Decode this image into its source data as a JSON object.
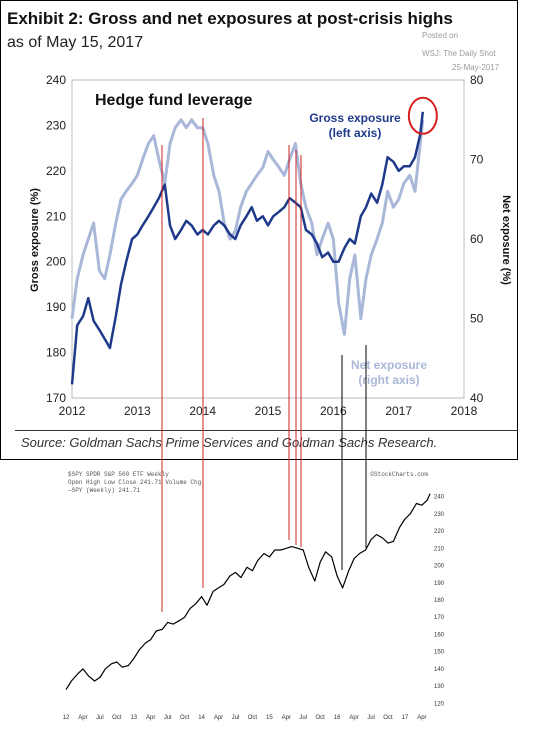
{
  "header": {
    "title": "Exhibit 2: Gross and net exposures at post-crisis highs",
    "subtitle": "as of May 15, 2017",
    "watermark_posted": "Posted on",
    "watermark_source": "WSJ: The Daily Shot",
    "watermark_date": "25-May-2017"
  },
  "source": "Source: Goldman Sachs Prime Services and Goldman Sachs Research.",
  "colors": {
    "gross": "#1f3a8a",
    "net": "#a9b7d8",
    "marker_lines": "#cc2222",
    "circle": "#d42020"
  },
  "chart_data": [
    {
      "type": "line",
      "title": "Hedge fund leverage",
      "xlabel": "",
      "ylabel": "Gross exposure (%)",
      "y2label": "Net exposure (%)",
      "xlim": [
        2012,
        2018
      ],
      "ylim": [
        170,
        240
      ],
      "y2lim": [
        40,
        80
      ],
      "x_ticks": [
        "2012",
        "2013",
        "2014",
        "2015",
        "2016",
        "2017",
        "2018"
      ],
      "y_ticks": [
        "170",
        "180",
        "190",
        "200",
        "210",
        "220",
        "230",
        "240"
      ],
      "y2_ticks": [
        "40",
        "50",
        "60",
        "70",
        "80"
      ],
      "grid": false,
      "series": [
        {
          "name": "Gross exposure (left axis)",
          "axis": "left",
          "x": [
            2012.0,
            2012.08,
            2012.17,
            2012.25,
            2012.33,
            2012.42,
            2012.5,
            2012.58,
            2012.67,
            2012.75,
            2012.83,
            2012.92,
            2013.0,
            2013.08,
            2013.17,
            2013.25,
            2013.33,
            2013.42,
            2013.5,
            2013.58,
            2013.67,
            2013.75,
            2013.83,
            2013.92,
            2014.0,
            2014.08,
            2014.17,
            2014.25,
            2014.33,
            2014.42,
            2014.5,
            2014.58,
            2014.67,
            2014.75,
            2014.83,
            2014.92,
            2015.0,
            2015.08,
            2015.17,
            2015.25,
            2015.33,
            2015.42,
            2015.5,
            2015.58,
            2015.67,
            2015.75,
            2015.83,
            2015.92,
            2016.0,
            2016.08,
            2016.17,
            2016.25,
            2016.33,
            2016.42,
            2016.5,
            2016.58,
            2016.67,
            2016.75,
            2016.83,
            2016.92,
            2017.0,
            2017.08,
            2017.17,
            2017.25,
            2017.33,
            2017.37
          ],
          "values": [
            173,
            186,
            188,
            192,
            187,
            185,
            183,
            181,
            188,
            195,
            200,
            205,
            206,
            208,
            210,
            212,
            214,
            217,
            208,
            205,
            207,
            209,
            208,
            206,
            207,
            206,
            208,
            209,
            208,
            206,
            205,
            208,
            210,
            212,
            209,
            210,
            208,
            210,
            211,
            212,
            214,
            213,
            212,
            207,
            206,
            204,
            201,
            202,
            200,
            200,
            203,
            205,
            204,
            210,
            212,
            215,
            213,
            217,
            223,
            222,
            220,
            221,
            221,
            223,
            228,
            233
          ]
        },
        {
          "name": "Net exposure (right axis)",
          "axis": "right",
          "x": [
            2012.0,
            2012.08,
            2012.17,
            2012.25,
            2012.33,
            2012.42,
            2012.5,
            2012.58,
            2012.67,
            2012.75,
            2012.83,
            2012.92,
            2013.0,
            2013.08,
            2013.17,
            2013.25,
            2013.33,
            2013.42,
            2013.5,
            2013.58,
            2013.67,
            2013.75,
            2013.83,
            2013.92,
            2014.0,
            2014.08,
            2014.17,
            2014.25,
            2014.33,
            2014.42,
            2014.5,
            2014.58,
            2014.67,
            2014.75,
            2014.83,
            2014.92,
            2015.0,
            2015.08,
            2015.17,
            2015.25,
            2015.33,
            2015.42,
            2015.5,
            2015.58,
            2015.67,
            2015.75,
            2015.83,
            2015.92,
            2016.0,
            2016.08,
            2016.17,
            2016.25,
            2016.33,
            2016.42,
            2016.5,
            2016.58,
            2016.67,
            2016.75,
            2016.83,
            2016.92,
            2017.0,
            2017.08,
            2017.17,
            2017.25,
            2017.33,
            2017.37
          ],
          "values": [
            50,
            55,
            58,
            60,
            62,
            56,
            55,
            58,
            62,
            65,
            66,
            67,
            68,
            70,
            72,
            73,
            70,
            67,
            72,
            74,
            75,
            74,
            75,
            74,
            74,
            72,
            68,
            66,
            62,
            60,
            61,
            64,
            66,
            67,
            68,
            69,
            71,
            70,
            69,
            68,
            70,
            72,
            67,
            64,
            62,
            58,
            60,
            62,
            60,
            52,
            48,
            55,
            58,
            50,
            55,
            58,
            60,
            62,
            66,
            64,
            65,
            67,
            68,
            66,
            72,
            75
          ]
        }
      ],
      "annotations": [
        {
          "text": "Gross exposure",
          "series": "gross"
        },
        {
          "text": "(left axis)",
          "series": "gross"
        },
        {
          "text": "Net exposure",
          "series": "net"
        },
        {
          "text": "(right axis)",
          "series": "net"
        }
      ]
    },
    {
      "type": "line",
      "title": "",
      "header_line1": "$SPY SPDR S&P 500 ETF  Weekly",
      "header_line2": "Open  High  Low  Close 241.71  Volume  Chg",
      "legend": "—SPY (Weekly) 241.71",
      "credit": "©StockCharts.com",
      "x_ticks": [
        "12",
        "Apr",
        "Jul",
        "Oct",
        "13",
        "Apr",
        "Jul",
        "Oct",
        "14",
        "Apr",
        "Jul",
        "Oct",
        "15",
        "Apr",
        "Jul",
        "Oct",
        "16",
        "Apr",
        "Jul",
        "Oct",
        "17",
        "Apr"
      ],
      "y_ticks": [
        "120",
        "130",
        "140",
        "150",
        "160",
        "170",
        "180",
        "190",
        "200",
        "210",
        "220",
        "230",
        "240"
      ],
      "ylim": [
        115,
        245
      ],
      "series": [
        {
          "name": "SPY (Weekly) 241.71",
          "x": [
            2012.0,
            2012.08,
            2012.17,
            2012.25,
            2012.33,
            2012.42,
            2012.5,
            2012.58,
            2012.67,
            2012.75,
            2012.83,
            2012.92,
            2013.0,
            2013.08,
            2013.17,
            2013.25,
            2013.33,
            2013.42,
            2013.5,
            2013.58,
            2013.67,
            2013.75,
            2013.83,
            2013.92,
            2014.0,
            2014.08,
            2014.17,
            2014.25,
            2014.33,
            2014.42,
            2014.5,
            2014.58,
            2014.67,
            2014.75,
            2014.83,
            2014.92,
            2015.0,
            2015.08,
            2015.17,
            2015.25,
            2015.33,
            2015.42,
            2015.5,
            2015.58,
            2015.67,
            2015.75,
            2015.83,
            2015.92,
            2016.0,
            2016.08,
            2016.17,
            2016.25,
            2016.33,
            2016.42,
            2016.5,
            2016.58,
            2016.67,
            2016.75,
            2016.83,
            2016.92,
            2017.0,
            2017.08,
            2017.17,
            2017.25,
            2017.33,
            2017.37
          ],
          "values": [
            128,
            133,
            137,
            140,
            136,
            133,
            135,
            140,
            143,
            144,
            141,
            142,
            146,
            151,
            155,
            157,
            162,
            163,
            167,
            166,
            168,
            170,
            175,
            178,
            182,
            177,
            185,
            187,
            189,
            194,
            196,
            193,
            199,
            197,
            203,
            207,
            205,
            209,
            209,
            210,
            211,
            210,
            209,
            199,
            191,
            202,
            208,
            205,
            194,
            187,
            197,
            204,
            207,
            209,
            215,
            218,
            216,
            213,
            214,
            222,
            227,
            230,
            236,
            235,
            238,
            241.71
          ]
        }
      ]
    }
  ]
}
